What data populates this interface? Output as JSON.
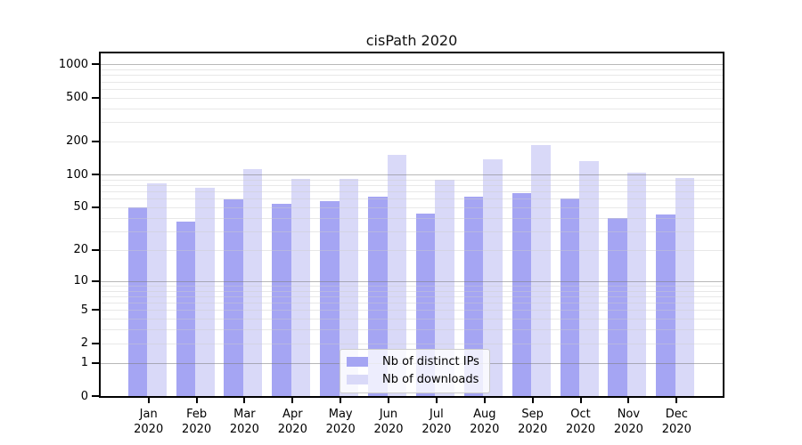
{
  "title": "cisPath 2020",
  "chart_data": {
    "type": "bar",
    "title": "cisPath 2020",
    "categories": [
      "Jan",
      "Feb",
      "Mar",
      "Apr",
      "May",
      "Jun",
      "Jul",
      "Aug",
      "Sep",
      "Oct",
      "Nov",
      "Dec"
    ],
    "year": "2020",
    "series": [
      {
        "name": "Nb of distinct IPs",
        "color": "#a5a5f3",
        "values": [
          50,
          37,
          59,
          54,
          57,
          63,
          44,
          63,
          67,
          60,
          40,
          43
        ]
      },
      {
        "name": "Nb of downloads",
        "color": "#d9d9f8",
        "values": [
          83,
          75,
          112,
          92,
          92,
          152,
          89,
          138,
          186,
          132,
          105,
          93
        ]
      }
    ],
    "xlabel": "",
    "ylabel": "",
    "y_axis": {
      "scale": "log10(1 + value)",
      "tick_values": [
        0,
        1,
        2,
        5,
        10,
        20,
        50,
        100,
        200,
        500,
        1000
      ],
      "range": [
        0,
        1250
      ],
      "grid_major_at": [
        1,
        10,
        100,
        1000
      ],
      "grid_minor": "2-9 multiples per decade"
    },
    "legend_position": "lower center, inside plot"
  },
  "colors": {
    "distinct_ips": "#a5a5f3",
    "downloads": "#d9d9f8",
    "grid_major": "#adadad",
    "grid_minor": "#e2e2e2",
    "axis": "#000000",
    "background": "#ffffff"
  }
}
